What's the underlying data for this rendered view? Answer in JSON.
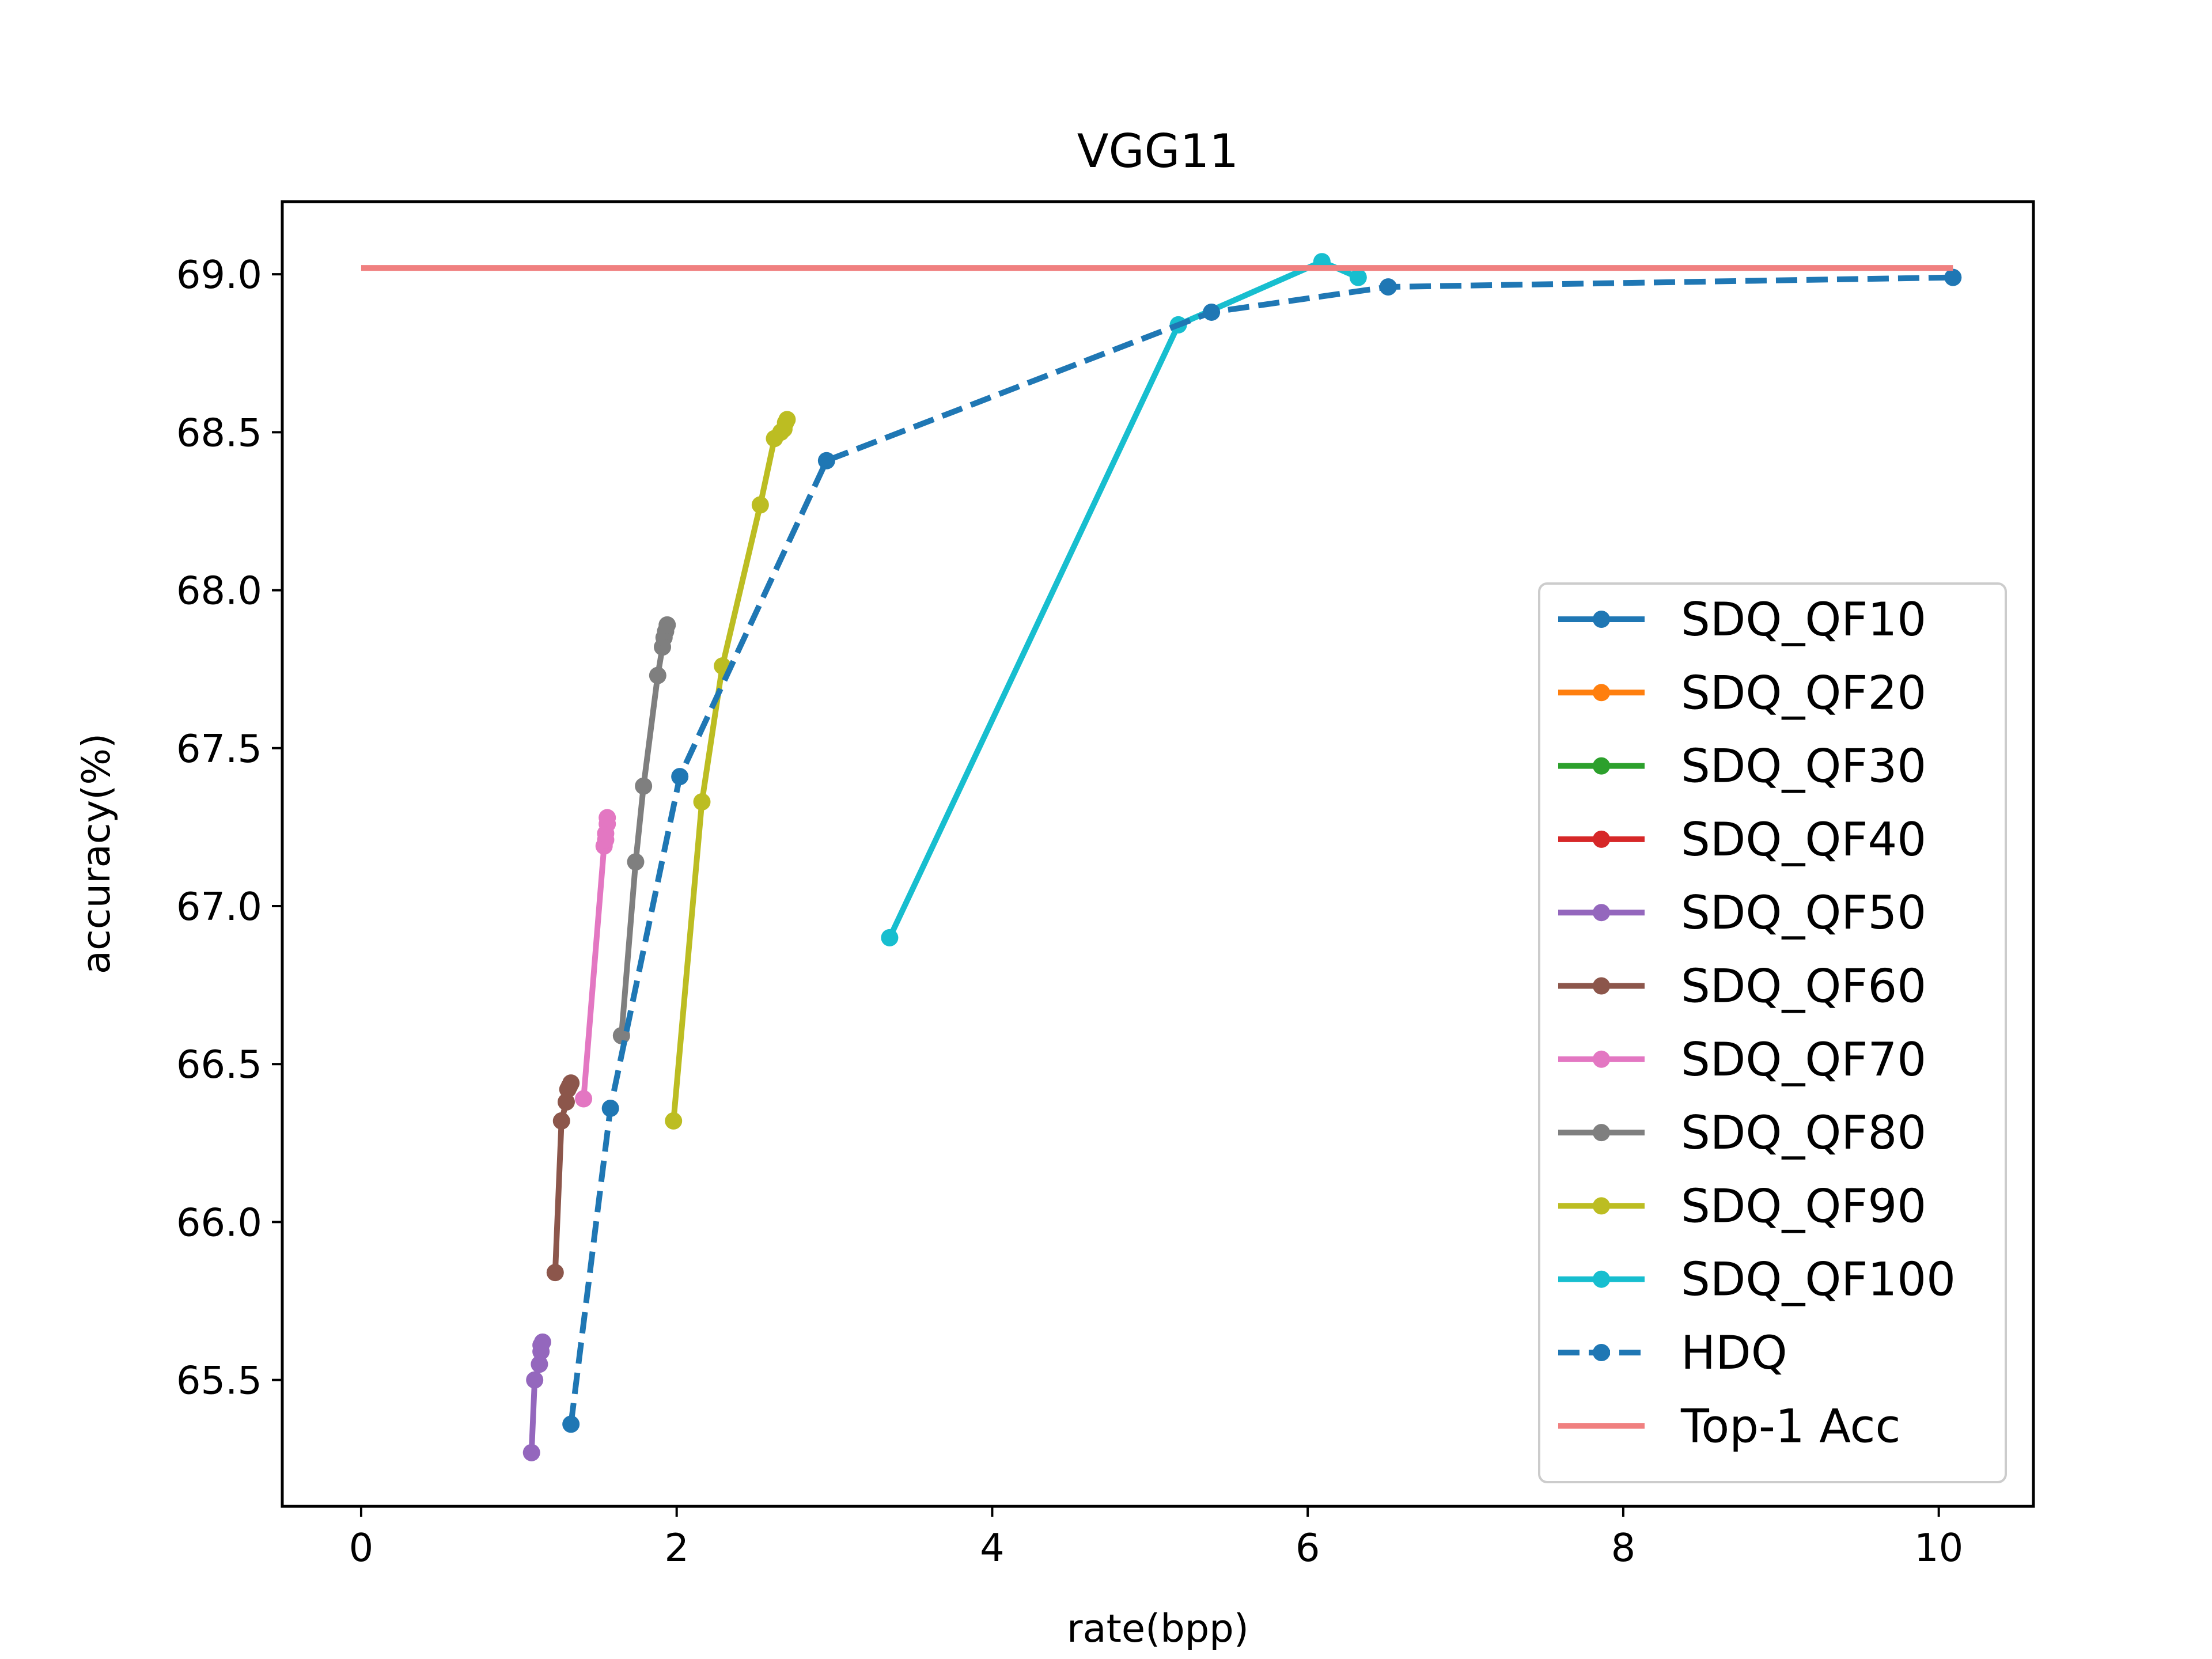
{
  "chart_data": {
    "type": "line",
    "title": "VGG11",
    "xlabel": "rate(bpp)",
    "ylabel": "accuracy(%)",
    "xlim": [
      -0.5,
      10.6
    ],
    "ylim": [
      65.1,
      69.23
    ],
    "xticks": [
      0,
      2,
      4,
      6,
      8,
      10
    ],
    "yticks": [
      65.5,
      66.0,
      66.5,
      67.0,
      67.5,
      68.0,
      68.5,
      69.0
    ],
    "xtick_labels": [
      "0",
      "2",
      "4",
      "6",
      "8",
      "10"
    ],
    "ytick_labels": [
      "65.5",
      "66.0",
      "66.5",
      "67.0",
      "67.5",
      "68.0",
      "68.5",
      "69.0"
    ],
    "grid": false,
    "legend_position": "lower-right",
    "series": [
      {
        "name": "SDQ_QF10",
        "color": "#1f77b4",
        "style": "solid",
        "marker": true,
        "x": [],
        "y": []
      },
      {
        "name": "SDQ_QF20",
        "color": "#ff7f0e",
        "style": "solid",
        "marker": true,
        "x": [],
        "y": []
      },
      {
        "name": "SDQ_QF30",
        "color": "#2ca02c",
        "style": "solid",
        "marker": true,
        "x": [],
        "y": []
      },
      {
        "name": "SDQ_QF40",
        "color": "#d62728",
        "style": "solid",
        "marker": true,
        "x": [],
        "y": []
      },
      {
        "name": "SDQ_QF50",
        "color": "#9467bd",
        "style": "solid",
        "marker": true,
        "x": [
          1.08,
          1.1,
          1.13,
          1.14,
          1.14,
          1.15
        ],
        "y": [
          65.27,
          65.5,
          65.55,
          65.59,
          65.61,
          65.62
        ]
      },
      {
        "name": "SDQ_QF60",
        "color": "#8c564b",
        "style": "solid",
        "marker": true,
        "x": [
          1.23,
          1.27,
          1.3,
          1.31,
          1.32,
          1.33
        ],
        "y": [
          65.84,
          66.32,
          66.38,
          66.42,
          66.43,
          66.44
        ]
      },
      {
        "name": "SDQ_QF70",
        "color": "#e377c2",
        "style": "solid",
        "marker": true,
        "x": [
          1.41,
          1.54,
          1.55,
          1.55,
          1.56,
          1.56
        ],
        "y": [
          66.39,
          67.19,
          67.21,
          67.23,
          67.26,
          67.28
        ]
      },
      {
        "name": "SDQ_QF80",
        "color": "#7f7f7f",
        "style": "solid",
        "marker": true,
        "x": [
          1.65,
          1.74,
          1.79,
          1.88,
          1.91,
          1.92,
          1.93,
          1.94
        ],
        "y": [
          66.59,
          67.14,
          67.38,
          67.73,
          67.82,
          67.85,
          67.87,
          67.89
        ]
      },
      {
        "name": "SDQ_QF90",
        "color": "#bcbd22",
        "style": "solid",
        "marker": true,
        "x": [
          1.98,
          2.16,
          2.29,
          2.53,
          2.62,
          2.66,
          2.68,
          2.69,
          2.7
        ],
        "y": [
          66.32,
          67.33,
          67.76,
          68.27,
          68.48,
          68.5,
          68.51,
          68.53,
          68.54
        ]
      },
      {
        "name": "SDQ_QF100",
        "color": "#17becf",
        "style": "solid",
        "marker": true,
        "x": [
          3.35,
          5.18,
          6.09,
          6.32
        ],
        "y": [
          66.9,
          68.84,
          69.04,
          68.99
        ]
      },
      {
        "name": "HDQ",
        "color": "#1f77b4",
        "style": "dashed",
        "marker": true,
        "x": [
          1.33,
          1.58,
          2.02,
          2.95,
          5.39,
          6.51,
          10.09
        ],
        "y": [
          65.36,
          66.36,
          67.41,
          68.41,
          68.88,
          68.96,
          68.99
        ]
      },
      {
        "name": "Top-1 Acc",
        "color": "#f08080",
        "style": "solid",
        "marker": false,
        "x": [
          0,
          10.09
        ],
        "y": [
          69.02,
          69.02
        ]
      }
    ]
  }
}
